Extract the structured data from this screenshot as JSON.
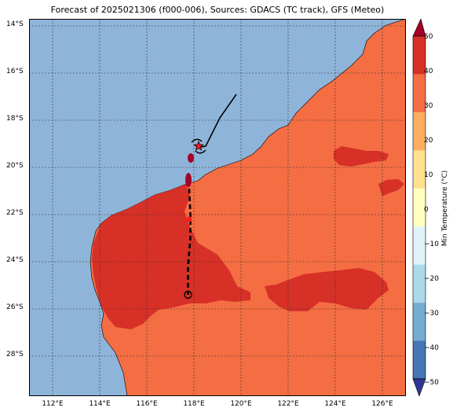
{
  "title": "Forecast of 2025021306 (f000-006), Sources: GDACS (TC track), GFS (Meteo)",
  "map": {
    "type": "geographic-map",
    "region": "Western Australia",
    "lon_range": [
      111,
      127
    ],
    "lat_range": [
      -29.7,
      -13.7
    ],
    "lon_ticks": [
      "112°E",
      "114°E",
      "116°E",
      "118°E",
      "120°E",
      "122°E",
      "124°E",
      "126°E"
    ],
    "lat_ticks": [
      "14°S",
      "16°S",
      "18°S",
      "20°S",
      "22°S",
      "24°S",
      "26°S",
      "28°S"
    ],
    "gridlines": true,
    "ocean_color": "#8fb4d9",
    "land_fill_color": "#f46d43",
    "hot_fill_color": "#d73027",
    "darkest_fill_color": "#a50026"
  },
  "colorbar": {
    "label": "Min Temperature (°C)",
    "ticks": [
      "50",
      "40",
      "30",
      "20",
      "10",
      "0",
      "−10",
      "−20",
      "−30",
      "−40",
      "−50"
    ],
    "range": [
      -50,
      50
    ],
    "extend": "both",
    "colors": [
      "#313695",
      "#4575b4",
      "#74add1",
      "#abd9e9",
      "#e0f3f8",
      "#ffffbf",
      "#fee090",
      "#fdae61",
      "#f46d43",
      "#d73027",
      "#a50026"
    ]
  },
  "tc_track": {
    "past_track": [
      [
        119.8,
        -16.9
      ],
      [
        119.1,
        -17.9
      ],
      [
        118.7,
        -18.7
      ],
      [
        118.5,
        -19.1
      ],
      [
        118.2,
        -19.15
      ]
    ],
    "current_position": [
      118.2,
      -19.1
    ],
    "forecast_track": [
      [
        117.8,
        -20.9
      ],
      [
        117.85,
        -22.0
      ],
      [
        117.85,
        -23.0
      ],
      [
        117.75,
        -24.2
      ],
      [
        117.75,
        -25.4
      ]
    ],
    "forecast_end_position": [
      117.75,
      -25.4
    ],
    "forecast_point": [
      117.8,
      -22.2
    ]
  }
}
